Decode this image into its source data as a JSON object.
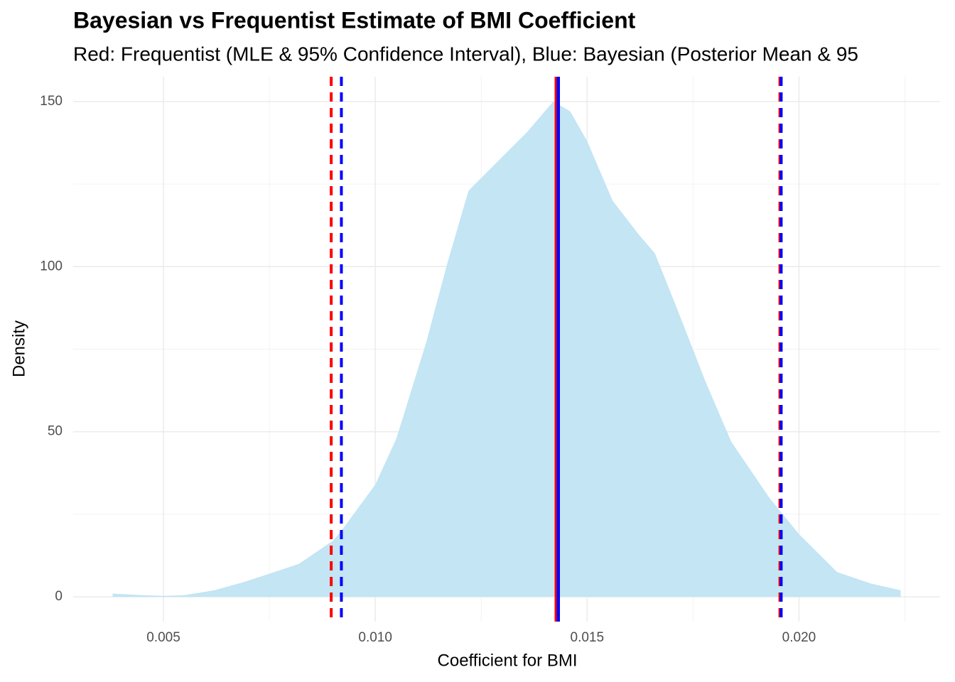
{
  "chart_data": {
    "type": "area",
    "title": "Bayesian vs Frequentist Estimate of BMI Coefficient",
    "subtitle": "Red: Frequentist (MLE & 95% Confidence Interval), Blue: Bayesian (Posterior Mean & 95",
    "x_label": "Coefficient for BMI",
    "y_label": "Density",
    "x": [
      0.0038,
      0.0045,
      0.005,
      0.0055,
      0.0062,
      0.0069,
      0.0075,
      0.0082,
      0.009,
      0.0092,
      0.01,
      0.0105,
      0.0112,
      0.0117,
      0.0122,
      0.0129,
      0.0136,
      0.0142,
      0.0146,
      0.015,
      0.0156,
      0.0162,
      0.0166,
      0.0171,
      0.0178,
      0.0184,
      0.0193,
      0.02,
      0.0209,
      0.0217,
      0.0224
    ],
    "values": [
      1,
      0.5,
      0.3,
      0.5,
      2,
      4.5,
      7,
      10,
      17,
      20,
      34,
      48,
      77,
      101,
      123,
      132,
      141,
      150,
      147,
      138,
      120,
      110,
      104,
      88,
      65,
      47,
      30,
      19,
      7.5,
      4,
      2
    ],
    "color": "#c3e5f4",
    "vlines": [
      {
        "value": 0.00896,
        "color": "#ff0000",
        "dashed": true
      },
      {
        "value": 0.0092,
        "color": "#0000ff",
        "dashed": true
      },
      {
        "value": 0.01955,
        "color": "#ff0000",
        "dashed": true
      },
      {
        "value": 0.01958,
        "color": "#0000ff",
        "dashed": true
      },
      {
        "value": 0.01427,
        "color": "#ff0000",
        "dashed": false
      },
      {
        "value": 0.01432,
        "color": "#0000ff",
        "dashed": false
      }
    ],
    "xlim": [
      0.00287,
      0.02333
    ],
    "ylim": [
      -7.5,
      157.5
    ],
    "xticks": [
      {
        "value": 0.005,
        "label": "0.005"
      },
      {
        "value": 0.01,
        "label": "0.010"
      },
      {
        "value": 0.015,
        "label": "0.015"
      },
      {
        "value": 0.02,
        "label": "0.020"
      }
    ],
    "yticks": [
      0,
      50,
      100,
      150
    ],
    "grid": true
  }
}
